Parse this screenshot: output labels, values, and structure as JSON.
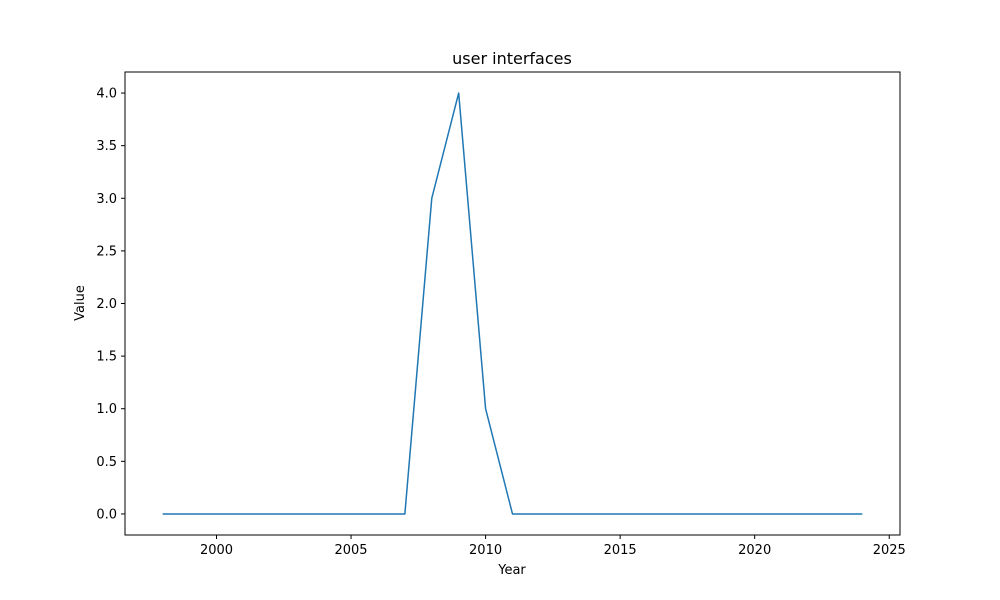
{
  "chart_data": {
    "type": "line",
    "title": "user interfaces",
    "xlabel": "Year",
    "ylabel": "Value",
    "xlim": [
      1996.6,
      2025.4
    ],
    "ylim": [
      -0.2,
      4.2
    ],
    "xticks": [
      2000,
      2005,
      2010,
      2015,
      2020,
      2025
    ],
    "yticks": [
      0.0,
      0.5,
      1.0,
      1.5,
      2.0,
      2.5,
      3.0,
      3.5,
      4.0
    ],
    "xtick_labels": [
      "2000",
      "2005",
      "2010",
      "2015",
      "2020",
      "2025"
    ],
    "ytick_labels": [
      "0.0",
      "0.5",
      "1.0",
      "1.5",
      "2.0",
      "2.5",
      "3.0",
      "3.5",
      "4.0"
    ],
    "grid": false,
    "series": [
      {
        "color": "#1f77b4",
        "x": [
          1998,
          1999,
          2000,
          2001,
          2002,
          2003,
          2004,
          2005,
          2006,
          2007,
          2008,
          2009,
          2010,
          2011,
          2012,
          2013,
          2014,
          2015,
          2016,
          2017,
          2018,
          2019,
          2020,
          2021,
          2022,
          2023,
          2024
        ],
        "y": [
          0,
          0,
          0,
          0,
          0,
          0,
          0,
          0,
          0,
          0,
          3,
          4,
          1,
          0,
          0,
          0,
          0,
          0,
          0,
          0,
          0,
          0,
          0,
          0,
          0,
          0,
          0
        ]
      }
    ]
  }
}
